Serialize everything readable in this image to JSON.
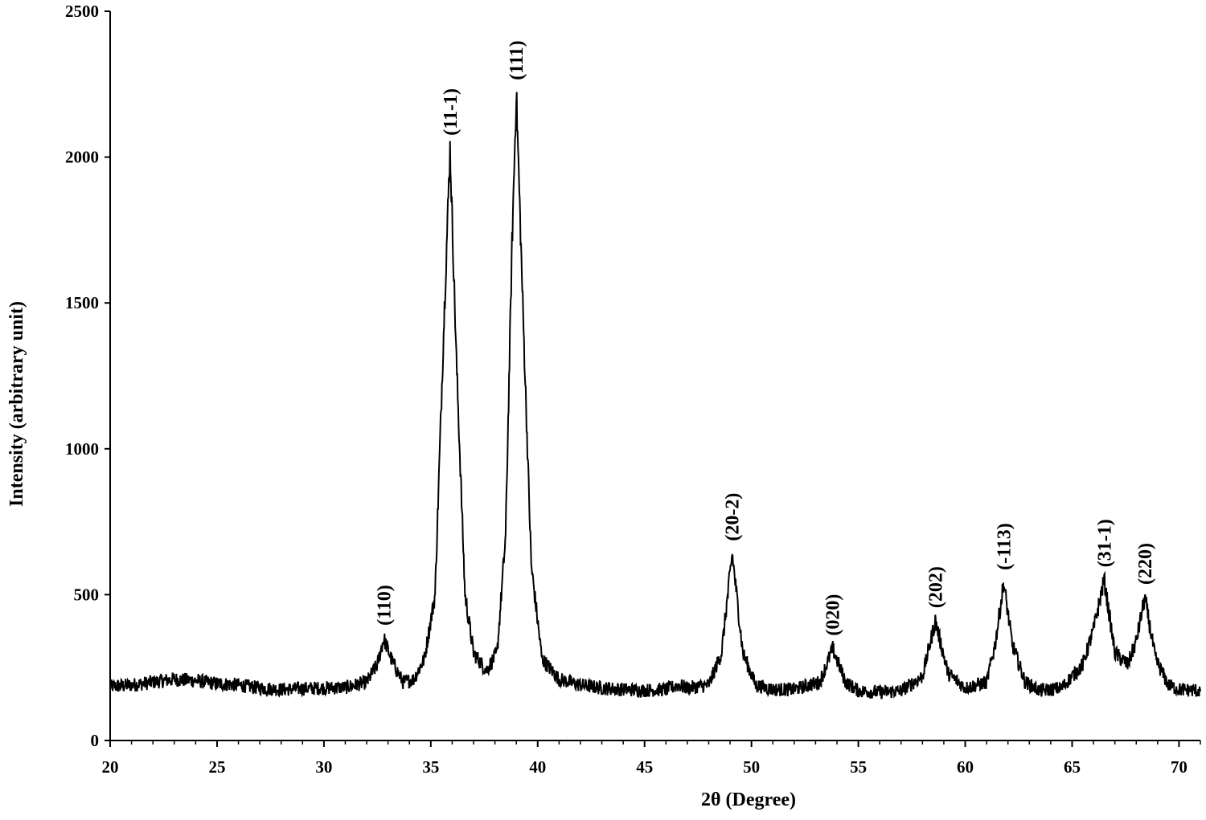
{
  "chart_data": {
    "type": "line",
    "title": "",
    "xlabel": "2θ (Degree)",
    "ylabel": "Intensity (arbitrary unit)",
    "xlim": [
      20,
      71
    ],
    "ylim": [
      0,
      2500
    ],
    "x_ticks": [
      "20",
      "25",
      "30",
      "35",
      "40",
      "45",
      "50",
      "55",
      "60",
      "65",
      "70"
    ],
    "y_ticks": [
      "0",
      "500",
      "1000",
      "1500",
      "2000",
      "2500"
    ],
    "grid": false,
    "legend": "none",
    "line_color": "#000000",
    "baseline": 180,
    "peaks": [
      {
        "label": "(110)",
        "x": 32.8,
        "y": 350
      },
      {
        "label": "(11-1)",
        "x": 35.9,
        "y": 2030
      },
      {
        "label": "(111)",
        "x": 39.0,
        "y": 2220
      },
      {
        "label": "(20-2)",
        "x": 49.1,
        "y": 640
      },
      {
        "label": "(020)",
        "x": 53.8,
        "y": 315
      },
      {
        "label": "(202)",
        "x": 58.6,
        "y": 410
      },
      {
        "label": "(-113)",
        "x": 61.8,
        "y": 540
      },
      {
        "label": "(31-1)",
        "x": 66.5,
        "y": 550
      },
      {
        "label": "(220)",
        "x": 68.4,
        "y": 490
      }
    ],
    "series": [
      {
        "points": [
          [
            20,
            185
          ],
          [
            21,
            190
          ],
          [
            22,
            200
          ],
          [
            23,
            210
          ],
          [
            24,
            205
          ],
          [
            25,
            195
          ],
          [
            26,
            190
          ],
          [
            27,
            180
          ],
          [
            28,
            175
          ],
          [
            29,
            178
          ],
          [
            30,
            180
          ],
          [
            31,
            182
          ],
          [
            32,
            200
          ],
          [
            32.5,
            260
          ],
          [
            32.8,
            350
          ],
          [
            33.2,
            270
          ],
          [
            33.7,
            200
          ],
          [
            34.2,
            210
          ],
          [
            34.7,
            280
          ],
          [
            35.2,
            500
          ],
          [
            35.6,
            1400
          ],
          [
            35.9,
            2030
          ],
          [
            36.2,
            1300
          ],
          [
            36.6,
            500
          ],
          [
            37.0,
            300
          ],
          [
            37.6,
            240
          ],
          [
            38.1,
            300
          ],
          [
            38.5,
            700
          ],
          [
            38.8,
            1700
          ],
          [
            39.0,
            2220
          ],
          [
            39.3,
            1500
          ],
          [
            39.7,
            600
          ],
          [
            40.2,
            280
          ],
          [
            41,
            210
          ],
          [
            42,
            190
          ],
          [
            43,
            180
          ],
          [
            44,
            175
          ],
          [
            45,
            172
          ],
          [
            46,
            175
          ],
          [
            46.6,
            190
          ],
          [
            47,
            180
          ],
          [
            48,
            190
          ],
          [
            48.6,
            300
          ],
          [
            49.1,
            640
          ],
          [
            49.6,
            300
          ],
          [
            50.2,
            190
          ],
          [
            51,
            175
          ],
          [
            52,
            175
          ],
          [
            53.2,
            200
          ],
          [
            53.8,
            315
          ],
          [
            54.4,
            200
          ],
          [
            55,
            170
          ],
          [
            56,
            165
          ],
          [
            57,
            170
          ],
          [
            58,
            220
          ],
          [
            58.6,
            410
          ],
          [
            59.2,
            230
          ],
          [
            60,
            180
          ],
          [
            61,
            200
          ],
          [
            61.4,
            330
          ],
          [
            61.8,
            540
          ],
          [
            62.2,
            330
          ],
          [
            62.8,
            200
          ],
          [
            63.5,
            170
          ],
          [
            64.5,
            180
          ],
          [
            65.5,
            260
          ],
          [
            66.0,
            380
          ],
          [
            66.5,
            550
          ],
          [
            67.0,
            300
          ],
          [
            67.6,
            260
          ],
          [
            68.0,
            340
          ],
          [
            68.4,
            490
          ],
          [
            68.9,
            280
          ],
          [
            69.5,
            190
          ],
          [
            70,
            175
          ],
          [
            71,
            170
          ]
        ]
      }
    ]
  }
}
